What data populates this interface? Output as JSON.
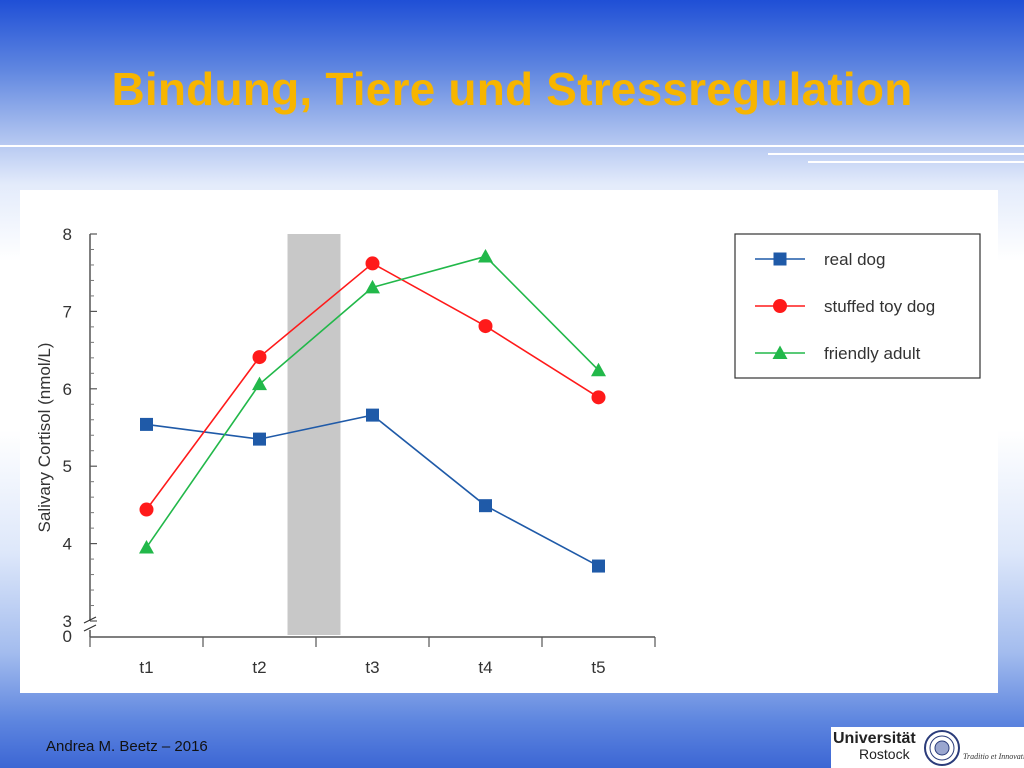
{
  "slide": {
    "title": "Bindung, Tiere und Stressregulation",
    "author": "Andrea M. Beetz – 2016"
  },
  "logo": {
    "name": "Universität",
    "city": "Rostock",
    "motto": "Traditio et Innovatio"
  },
  "colors": {
    "title": "#f7b500",
    "real_dog": "#1f5aa8",
    "stuffed_toy_dog": "#ff1a1a",
    "friendly_adult": "#22b84a",
    "shaded_band": "#c8c8c8"
  },
  "chart_data": {
    "type": "line",
    "title": "",
    "xlabel": "",
    "ylabel": "Salivary Cortisol (nmol/L)",
    "categories": [
      "t1",
      "t2",
      "t3",
      "t4",
      "t5"
    ],
    "ylim": [
      3,
      8
    ],
    "yticks": [
      "3",
      "4",
      "5",
      "6",
      "7",
      "8"
    ],
    "y_axis_break": true,
    "y_zero_label": "0",
    "shaded_interval": [
      "t2",
      "t3"
    ],
    "legend_position": "top-right",
    "series": [
      {
        "name": "real dog",
        "marker": "square",
        "color": "#1f5aa8",
        "values": [
          5.54,
          5.35,
          5.66,
          4.49,
          3.71
        ]
      },
      {
        "name": "stuffed toy dog",
        "marker": "circle",
        "color": "#ff1a1a",
        "values": [
          4.44,
          6.41,
          7.62,
          6.81,
          5.89
        ]
      },
      {
        "name": "friendly adult",
        "marker": "triangle",
        "color": "#22b84a",
        "values": [
          3.95,
          6.06,
          7.31,
          7.71,
          6.24
        ]
      }
    ]
  }
}
